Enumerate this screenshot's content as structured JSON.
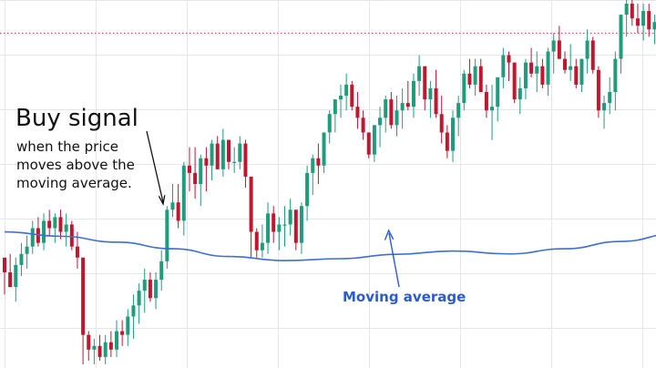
{
  "chart_data": {
    "type": "candlestick",
    "title": "",
    "xlabel": "",
    "ylabel": "",
    "grid": true,
    "ylim": [
      0,
      100
    ],
    "colors": {
      "up": "#1f9c7c",
      "down": "#c2152e",
      "ma_line": "#3d6fd2",
      "ref_line": "#d93a3a",
      "annotation_text": "#111111",
      "ma_label": "#2a5bd3"
    },
    "reference_line": {
      "value": 91,
      "style": "dotted"
    },
    "ohlc": [
      [
        30,
        29,
        20,
        26
      ],
      [
        26,
        31,
        22,
        22
      ],
      [
        22,
        30,
        18,
        28
      ],
      [
        28,
        34,
        25,
        31
      ],
      [
        31,
        36,
        27,
        33
      ],
      [
        33,
        40,
        31,
        38
      ],
      [
        38,
        41,
        33,
        34
      ],
      [
        34,
        42,
        32,
        40
      ],
      [
        40,
        43,
        36,
        38
      ],
      [
        38,
        42,
        34,
        41
      ],
      [
        41,
        43,
        35,
        37
      ],
      [
        37,
        42,
        33,
        39
      ],
      [
        39,
        40,
        32,
        33
      ],
      [
        33,
        37,
        27,
        30
      ],
      [
        30,
        30,
        1,
        9
      ],
      [
        9,
        10,
        2,
        5
      ],
      [
        5,
        8,
        1,
        6
      ],
      [
        6,
        9,
        2,
        3
      ],
      [
        3,
        9,
        1,
        7
      ],
      [
        7,
        10,
        3,
        5
      ],
      [
        5,
        13,
        3,
        10
      ],
      [
        10,
        13,
        6,
        9
      ],
      [
        9,
        16,
        6,
        14
      ],
      [
        14,
        20,
        8,
        17
      ],
      [
        17,
        23,
        12,
        21
      ],
      [
        21,
        27,
        15,
        24
      ],
      [
        24,
        26,
        18,
        19
      ],
      [
        19,
        26,
        16,
        24
      ],
      [
        24,
        32,
        21,
        29
      ],
      [
        29,
        44,
        27,
        43
      ],
      [
        43,
        50,
        41,
        45
      ],
      [
        45,
        50,
        38,
        40
      ],
      [
        40,
        56,
        36,
        55
      ],
      [
        55,
        60,
        48,
        53
      ],
      [
        53,
        60,
        46,
        50
      ],
      [
        50,
        58,
        44,
        57
      ],
      [
        57,
        60,
        48,
        55
      ],
      [
        55,
        62,
        51,
        61
      ],
      [
        61,
        63,
        54,
        54
      ],
      [
        54,
        65,
        52,
        62
      ],
      [
        62,
        62,
        54,
        56
      ],
      [
        56,
        60,
        53,
        56
      ],
      [
        56,
        63,
        54,
        61
      ],
      [
        61,
        62,
        49,
        52
      ],
      [
        52,
        52,
        30,
        37
      ],
      [
        37,
        38,
        30,
        32
      ],
      [
        32,
        39,
        30,
        34
      ],
      [
        34,
        45,
        31,
        42
      ],
      [
        42,
        44,
        34,
        37
      ],
      [
        37,
        41,
        32,
        39
      ],
      [
        39,
        44,
        33,
        39
      ],
      [
        39,
        46,
        36,
        43
      ],
      [
        43,
        43,
        32,
        34
      ],
      [
        34,
        45,
        31,
        44
      ],
      [
        44,
        55,
        40,
        53
      ],
      [
        53,
        58,
        47,
        57
      ],
      [
        57,
        61,
        50,
        55
      ],
      [
        55,
        64,
        53,
        64
      ],
      [
        64,
        70,
        61,
        69
      ],
      [
        69,
        72,
        64,
        73
      ],
      [
        73,
        77,
        68,
        74
      ],
      [
        74,
        80,
        70,
        77
      ],
      [
        77,
        78,
        70,
        71
      ],
      [
        71,
        75,
        65,
        68
      ],
      [
        68,
        70,
        62,
        64
      ],
      [
        64,
        64,
        57,
        58
      ],
      [
        58,
        66,
        56,
        66
      ],
      [
        66,
        71,
        60,
        68
      ],
      [
        68,
        74,
        64,
        73
      ],
      [
        73,
        75,
        65,
        66
      ],
      [
        66,
        74,
        63,
        70
      ],
      [
        70,
        76,
        65,
        72
      ],
      [
        72,
        78,
        70,
        71
      ],
      [
        71,
        80,
        68,
        78
      ],
      [
        78,
        85,
        74,
        82
      ],
      [
        82,
        82,
        70,
        73
      ],
      [
        73,
        78,
        68,
        76
      ],
      [
        76,
        81,
        68,
        69
      ],
      [
        69,
        74,
        61,
        64
      ],
      [
        64,
        66,
        57,
        59
      ],
      [
        59,
        70,
        56,
        68
      ],
      [
        68,
        74,
        63,
        72
      ],
      [
        72,
        81,
        70,
        80
      ],
      [
        80,
        84,
        76,
        77
      ],
      [
        77,
        84,
        74,
        82
      ],
      [
        82,
        84,
        75,
        75
      ],
      [
        75,
        77,
        68,
        70
      ],
      [
        70,
        77,
        62,
        71
      ],
      [
        71,
        79,
        67,
        79
      ],
      [
        79,
        87,
        76,
        85
      ],
      [
        85,
        86,
        78,
        83
      ],
      [
        83,
        83,
        72,
        73
      ],
      [
        73,
        79,
        69,
        76
      ],
      [
        76,
        84,
        73,
        83
      ],
      [
        83,
        87,
        79,
        80
      ],
      [
        80,
        86,
        75,
        82
      ],
      [
        82,
        84,
        76,
        77
      ],
      [
        77,
        87,
        74,
        86
      ],
      [
        86,
        91,
        80,
        89
      ],
      [
        89,
        93,
        84,
        84
      ],
      [
        84,
        86,
        80,
        81
      ],
      [
        81,
        88,
        78,
        82
      ],
      [
        82,
        84,
        76,
        77
      ],
      [
        77,
        84,
        75,
        84
      ],
      [
        84,
        92,
        80,
        89
      ],
      [
        89,
        90,
        80,
        81
      ],
      [
        81,
        82,
        68,
        70
      ],
      [
        70,
        74,
        65,
        72
      ],
      [
        72,
        79,
        69,
        75
      ],
      [
        75,
        86,
        70,
        84
      ],
      [
        84,
        96,
        80,
        96
      ],
      [
        96,
        100,
        90,
        99
      ],
      [
        99,
        100,
        93,
        95
      ],
      [
        95,
        99,
        91,
        93
      ],
      [
        93,
        99,
        89,
        97
      ],
      [
        97,
        99,
        90,
        92
      ],
      [
        92,
        96,
        88,
        94
      ],
      [
        94,
        97,
        89,
        91
      ]
    ],
    "moving_average": [
      [
        0,
        37.0
      ],
      [
        10,
        35.8
      ],
      [
        20,
        34.2
      ],
      [
        30,
        32.4
      ],
      [
        40,
        30.3
      ],
      [
        50,
        29.2
      ],
      [
        60,
        29.7
      ],
      [
        70,
        30.9
      ],
      [
        80,
        31.8
      ],
      [
        90,
        31.0
      ],
      [
        100,
        32.4
      ],
      [
        110,
        34.4
      ],
      [
        120,
        36.6
      ],
      [
        130,
        39.0
      ],
      [
        140,
        41.9
      ],
      [
        150,
        45.2
      ],
      [
        160,
        49.0
      ],
      [
        170,
        53.6
      ],
      [
        180,
        57.8
      ],
      [
        190,
        60.6
      ],
      [
        200,
        63.2
      ],
      [
        210,
        65.6
      ]
    ],
    "annotations": {
      "buy_signal_title": "Buy signal",
      "buy_signal_text": [
        "when the price",
        "moves above the",
        "moving average."
      ],
      "ma_label": "Moving average"
    }
  }
}
